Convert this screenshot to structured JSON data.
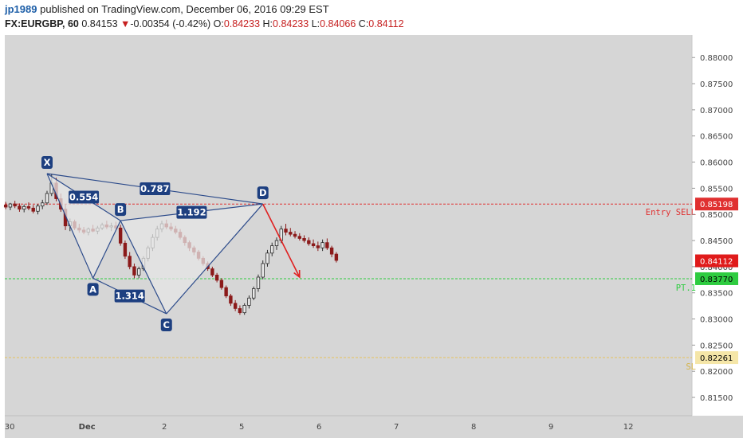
{
  "header": {
    "user": "jp1989",
    "published": "published on TradingView.com, December 06, 2016 09:29 EST",
    "symbol": "FX:EURGBP, 60",
    "last": "0.84153",
    "down_arrow": "▼",
    "change": "-0.00354 (-0.42%)",
    "o_label": "O:",
    "o_value": "0.84233",
    "h_label": "H:",
    "h_value": "0.84233",
    "l_label": "L:",
    "l_value": "0.84066",
    "c_label": "C:",
    "c_value": "0.84112"
  },
  "chart_data": {
    "type": "candlestick",
    "y_ticks": [
      "0.88000",
      "0.87500",
      "0.87000",
      "0.86500",
      "0.86000",
      "0.85500",
      "0.85000",
      "0.84500",
      "0.84000",
      "0.83500",
      "0.83000",
      "0.82500",
      "0.82000",
      "0.81500"
    ],
    "x_ticks": [
      "30",
      "Dec",
      "2",
      "5",
      "6",
      "7",
      "8",
      "9",
      "12"
    ],
    "ylim": [
      0.8115,
      0.8843
    ],
    "colors": {
      "up": "#2c2c2c",
      "down": "#8b1a1a",
      "pattern": "#2b4a8a",
      "entry": "#e03030",
      "target": "#2ecc40",
      "stop": "#e6c35c",
      "arrow": "#e02020"
    },
    "pattern_points": [
      {
        "name": "X",
        "x": 0,
        "y": 0.8578
      },
      {
        "name": "A",
        "x": 10,
        "y": 0.8378
      },
      {
        "name": "B",
        "x": 16,
        "y": 0.8488
      },
      {
        "name": "C",
        "x": 26,
        "y": 0.831
      },
      {
        "name": "D",
        "x": 47,
        "y": 0.852
      }
    ],
    "ratios": [
      {
        "value": "0.554",
        "from": "X",
        "to": "B"
      },
      {
        "value": "0.787",
        "from": "X",
        "to": "D"
      },
      {
        "value": "1.314",
        "from": "A",
        "to": "C"
      },
      {
        "value": "1.192",
        "from": "B",
        "to": "D"
      }
    ],
    "levels": [
      {
        "name": "Entry SELL",
        "value": "0.85198",
        "y": 0.85198
      },
      {
        "name": "PT.1",
        "value": "0.83770",
        "y": 0.8377
      },
      {
        "name": "SL",
        "value": "0.82261",
        "y": 0.82261
      }
    ],
    "last_price": {
      "value": "0.84112",
      "y": 0.84112
    },
    "projection": {
      "from": {
        "x": 47,
        "y": 0.852
      },
      "to": {
        "x": 55,
        "y": 0.838
      }
    },
    "candles": [
      {
        "o": 0.8518,
        "h": 0.8524,
        "l": 0.851,
        "c": 0.8514
      },
      {
        "o": 0.8514,
        "h": 0.8522,
        "l": 0.8508,
        "c": 0.852
      },
      {
        "o": 0.852,
        "h": 0.8526,
        "l": 0.8512,
        "c": 0.8516
      },
      {
        "o": 0.8516,
        "h": 0.8521,
        "l": 0.8505,
        "c": 0.851
      },
      {
        "o": 0.851,
        "h": 0.8519,
        "l": 0.8504,
        "c": 0.8515
      },
      {
        "o": 0.8515,
        "h": 0.8523,
        "l": 0.8508,
        "c": 0.8512
      },
      {
        "o": 0.8512,
        "h": 0.8518,
        "l": 0.8502,
        "c": 0.8506
      },
      {
        "o": 0.8506,
        "h": 0.852,
        "l": 0.85,
        "c": 0.8516
      },
      {
        "o": 0.8516,
        "h": 0.8528,
        "l": 0.851,
        "c": 0.8522
      },
      {
        "o": 0.8522,
        "h": 0.8545,
        "l": 0.8518,
        "c": 0.854
      },
      {
        "o": 0.854,
        "h": 0.8578,
        "l": 0.8535,
        "c": 0.856
      },
      {
        "o": 0.856,
        "h": 0.857,
        "l": 0.8525,
        "c": 0.853
      },
      {
        "o": 0.853,
        "h": 0.854,
        "l": 0.8505,
        "c": 0.851
      },
      {
        "o": 0.851,
        "h": 0.852,
        "l": 0.847,
        "c": 0.8478
      },
      {
        "o": 0.8478,
        "h": 0.8492,
        "l": 0.8468,
        "c": 0.8486
      },
      {
        "o": 0.8486,
        "h": 0.849,
        "l": 0.847,
        "c": 0.8474
      },
      {
        "o": 0.8474,
        "h": 0.8482,
        "l": 0.8465,
        "c": 0.847
      },
      {
        "o": 0.847,
        "h": 0.8476,
        "l": 0.8462,
        "c": 0.8466
      },
      {
        "o": 0.8466,
        "h": 0.8475,
        "l": 0.846,
        "c": 0.8472
      },
      {
        "o": 0.8472,
        "h": 0.848,
        "l": 0.8466,
        "c": 0.8468
      },
      {
        "o": 0.8468,
        "h": 0.8478,
        "l": 0.8462,
        "c": 0.8474
      },
      {
        "o": 0.8474,
        "h": 0.8484,
        "l": 0.847,
        "c": 0.848
      },
      {
        "o": 0.848,
        "h": 0.8488,
        "l": 0.8472,
        "c": 0.8476
      },
      {
        "o": 0.8476,
        "h": 0.8484,
        "l": 0.8468,
        "c": 0.8478
      },
      {
        "o": 0.8478,
        "h": 0.8486,
        "l": 0.847,
        "c": 0.8474
      },
      {
        "o": 0.8474,
        "h": 0.848,
        "l": 0.844,
        "c": 0.8445
      },
      {
        "o": 0.8445,
        "h": 0.845,
        "l": 0.8415,
        "c": 0.842
      },
      {
        "o": 0.842,
        "h": 0.8428,
        "l": 0.8395,
        "c": 0.84
      },
      {
        "o": 0.84,
        "h": 0.8406,
        "l": 0.8378,
        "c": 0.8384
      },
      {
        "o": 0.8384,
        "h": 0.84,
        "l": 0.8378,
        "c": 0.8396
      },
      {
        "o": 0.8396,
        "h": 0.842,
        "l": 0.8392,
        "c": 0.8416
      },
      {
        "o": 0.8416,
        "h": 0.844,
        "l": 0.841,
        "c": 0.8436
      },
      {
        "o": 0.8436,
        "h": 0.8462,
        "l": 0.843,
        "c": 0.8456
      },
      {
        "o": 0.8456,
        "h": 0.8478,
        "l": 0.845,
        "c": 0.8472
      },
      {
        "o": 0.8472,
        "h": 0.8488,
        "l": 0.8466,
        "c": 0.8482
      },
      {
        "o": 0.8482,
        "h": 0.849,
        "l": 0.8472,
        "c": 0.8476
      },
      {
        "o": 0.8476,
        "h": 0.8484,
        "l": 0.8468,
        "c": 0.8472
      },
      {
        "o": 0.8472,
        "h": 0.8478,
        "l": 0.8462,
        "c": 0.8466
      },
      {
        "o": 0.8466,
        "h": 0.8472,
        "l": 0.8452,
        "c": 0.8456
      },
      {
        "o": 0.8456,
        "h": 0.846,
        "l": 0.844,
        "c": 0.8446
      },
      {
        "o": 0.8446,
        "h": 0.845,
        "l": 0.843,
        "c": 0.8436
      },
      {
        "o": 0.8436,
        "h": 0.844,
        "l": 0.8422,
        "c": 0.8428
      },
      {
        "o": 0.8428,
        "h": 0.8432,
        "l": 0.8412,
        "c": 0.8416
      },
      {
        "o": 0.8416,
        "h": 0.842,
        "l": 0.8402,
        "c": 0.8406
      },
      {
        "o": 0.8406,
        "h": 0.841,
        "l": 0.8392,
        "c": 0.8396
      },
      {
        "o": 0.8396,
        "h": 0.84,
        "l": 0.838,
        "c": 0.8384
      },
      {
        "o": 0.8384,
        "h": 0.8388,
        "l": 0.837,
        "c": 0.8374
      },
      {
        "o": 0.8374,
        "h": 0.8378,
        "l": 0.8356,
        "c": 0.836
      },
      {
        "o": 0.836,
        "h": 0.8364,
        "l": 0.834,
        "c": 0.8344
      },
      {
        "o": 0.8344,
        "h": 0.8348,
        "l": 0.8325,
        "c": 0.833
      },
      {
        "o": 0.833,
        "h": 0.8336,
        "l": 0.8315,
        "c": 0.832
      },
      {
        "o": 0.832,
        "h": 0.8326,
        "l": 0.8308,
        "c": 0.8312
      },
      {
        "o": 0.8312,
        "h": 0.833,
        "l": 0.8308,
        "c": 0.8326
      },
      {
        "o": 0.8326,
        "h": 0.8345,
        "l": 0.832,
        "c": 0.834
      },
      {
        "o": 0.834,
        "h": 0.8362,
        "l": 0.8336,
        "c": 0.8358
      },
      {
        "o": 0.8358,
        "h": 0.8385,
        "l": 0.8352,
        "c": 0.838
      },
      {
        "o": 0.838,
        "h": 0.8412,
        "l": 0.8376,
        "c": 0.8406
      },
      {
        "o": 0.8406,
        "h": 0.8432,
        "l": 0.84,
        "c": 0.8426
      },
      {
        "o": 0.8426,
        "h": 0.8446,
        "l": 0.842,
        "c": 0.844
      },
      {
        "o": 0.844,
        "h": 0.8456,
        "l": 0.8432,
        "c": 0.845
      },
      {
        "o": 0.845,
        "h": 0.8478,
        "l": 0.8445,
        "c": 0.8472
      },
      {
        "o": 0.8472,
        "h": 0.8482,
        "l": 0.846,
        "c": 0.8466
      },
      {
        "o": 0.8466,
        "h": 0.8474,
        "l": 0.8458,
        "c": 0.8462
      },
      {
        "o": 0.8462,
        "h": 0.8468,
        "l": 0.8454,
        "c": 0.8458
      },
      {
        "o": 0.8458,
        "h": 0.8464,
        "l": 0.845,
        "c": 0.8454
      },
      {
        "o": 0.8454,
        "h": 0.846,
        "l": 0.8446,
        "c": 0.845
      },
      {
        "o": 0.845,
        "h": 0.8456,
        "l": 0.844,
        "c": 0.8444
      },
      {
        "o": 0.8444,
        "h": 0.8452,
        "l": 0.8436,
        "c": 0.844
      },
      {
        "o": 0.844,
        "h": 0.8448,
        "l": 0.843,
        "c": 0.8436
      },
      {
        "o": 0.8436,
        "h": 0.8452,
        "l": 0.843,
        "c": 0.8446
      },
      {
        "o": 0.8446,
        "h": 0.8454,
        "l": 0.8432,
        "c": 0.8436
      },
      {
        "o": 0.8436,
        "h": 0.844,
        "l": 0.8418,
        "c": 0.8424
      },
      {
        "o": 0.8424,
        "h": 0.8428,
        "l": 0.8408,
        "c": 0.8412
      }
    ]
  }
}
